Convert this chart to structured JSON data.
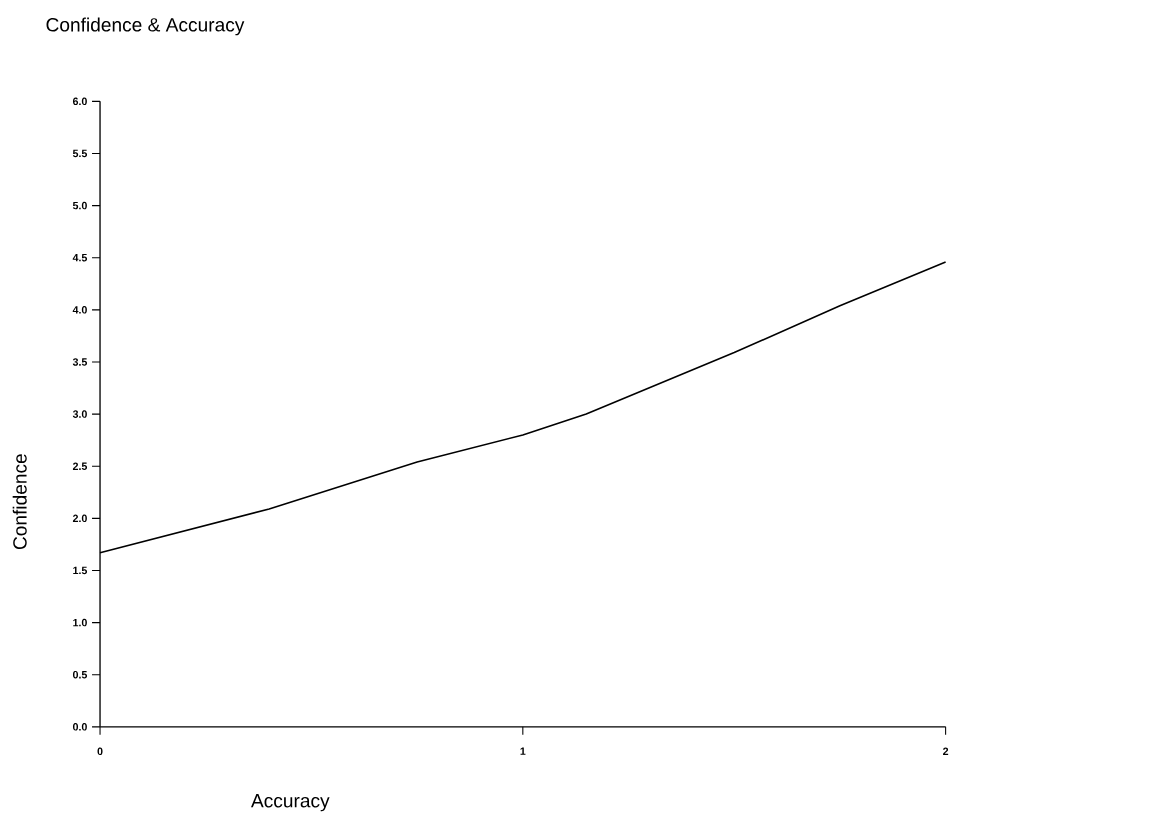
{
  "chart_data": {
    "type": "line",
    "title": "Confidence & Accuracy",
    "xlabel": "Accuracy",
    "ylabel": "Confidence",
    "x": [
      0,
      0.4,
      0.75,
      1,
      1.15,
      1.5,
      1.75,
      2
    ],
    "series": [
      {
        "color": "#000000",
        "values": [
          1.67,
          2.09,
          2.54,
          2.8,
          3.0,
          3.59,
          4.04,
          4.46
        ]
      }
    ],
    "xlim": [
      0,
      2
    ],
    "xticks": [
      0,
      1,
      2
    ],
    "ylim": [
      0,
      6
    ],
    "yticks": [
      {
        "value": 0,
        "label": "0.0"
      },
      0.5,
      {
        "value": 1,
        "label": "1.0"
      },
      1.5,
      {
        "value": 2,
        "label": "2.0"
      },
      2.5,
      {
        "value": 3,
        "label": "3.0"
      },
      3.5,
      {
        "value": 4,
        "label": "4.0"
      },
      4.5,
      {
        "value": 5,
        "label": "5.0"
      },
      5.5,
      {
        "value": 6,
        "label": "6.0"
      }
    ]
  }
}
